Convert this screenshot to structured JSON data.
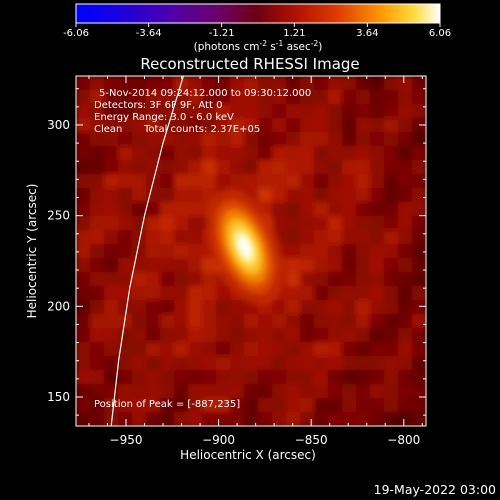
{
  "chart_data": {
    "type": "heatmap",
    "title": "Reconstructed RHESSI Image",
    "xlabel": "Heliocentric X (arcsec)",
    "ylabel": "Heliocentric Y (arcsec)",
    "xlim": [
      -977,
      -788
    ],
    "ylim": [
      134,
      327
    ],
    "xticks": [
      -950,
      -900,
      -850,
      -800
    ],
    "yticks": [
      150,
      200,
      250,
      300
    ],
    "colorbar": {
      "ticks": [
        "-6.06",
        "-3.64",
        "-1.21",
        "1.21",
        "3.64",
        "6.06"
      ],
      "range": [
        -6.06,
        6.06
      ],
      "unit_label": "(photons cm",
      "unit_sup1": "-2",
      "unit_mid": " s",
      "unit_sup2": "-1",
      "unit_mid2": " asec",
      "unit_sup3": "-2",
      "unit_end": ")"
    },
    "annotations": {
      "time": "5-Nov-2014 09:24:12.000 to 09:30:12.000",
      "detectors": "Detectors: 3F 6F 9F, Att 0",
      "energy": "Energy Range: 3.0 - 6.0 keV",
      "method": "Clean",
      "counts": "Total counts: 2.37E+05",
      "peak": "Position of Peak = [-887,235]"
    },
    "source": {
      "peak_x": -887,
      "peak_y": 235,
      "peak_value": 6.06
    },
    "limb": [
      [
        -919,
        327
      ],
      [
        -930,
        290
      ],
      [
        -940,
        250
      ],
      [
        -948,
        210
      ],
      [
        -954,
        170
      ],
      [
        -958,
        134
      ]
    ],
    "date_stamp": "19-May-2022 03:00"
  }
}
